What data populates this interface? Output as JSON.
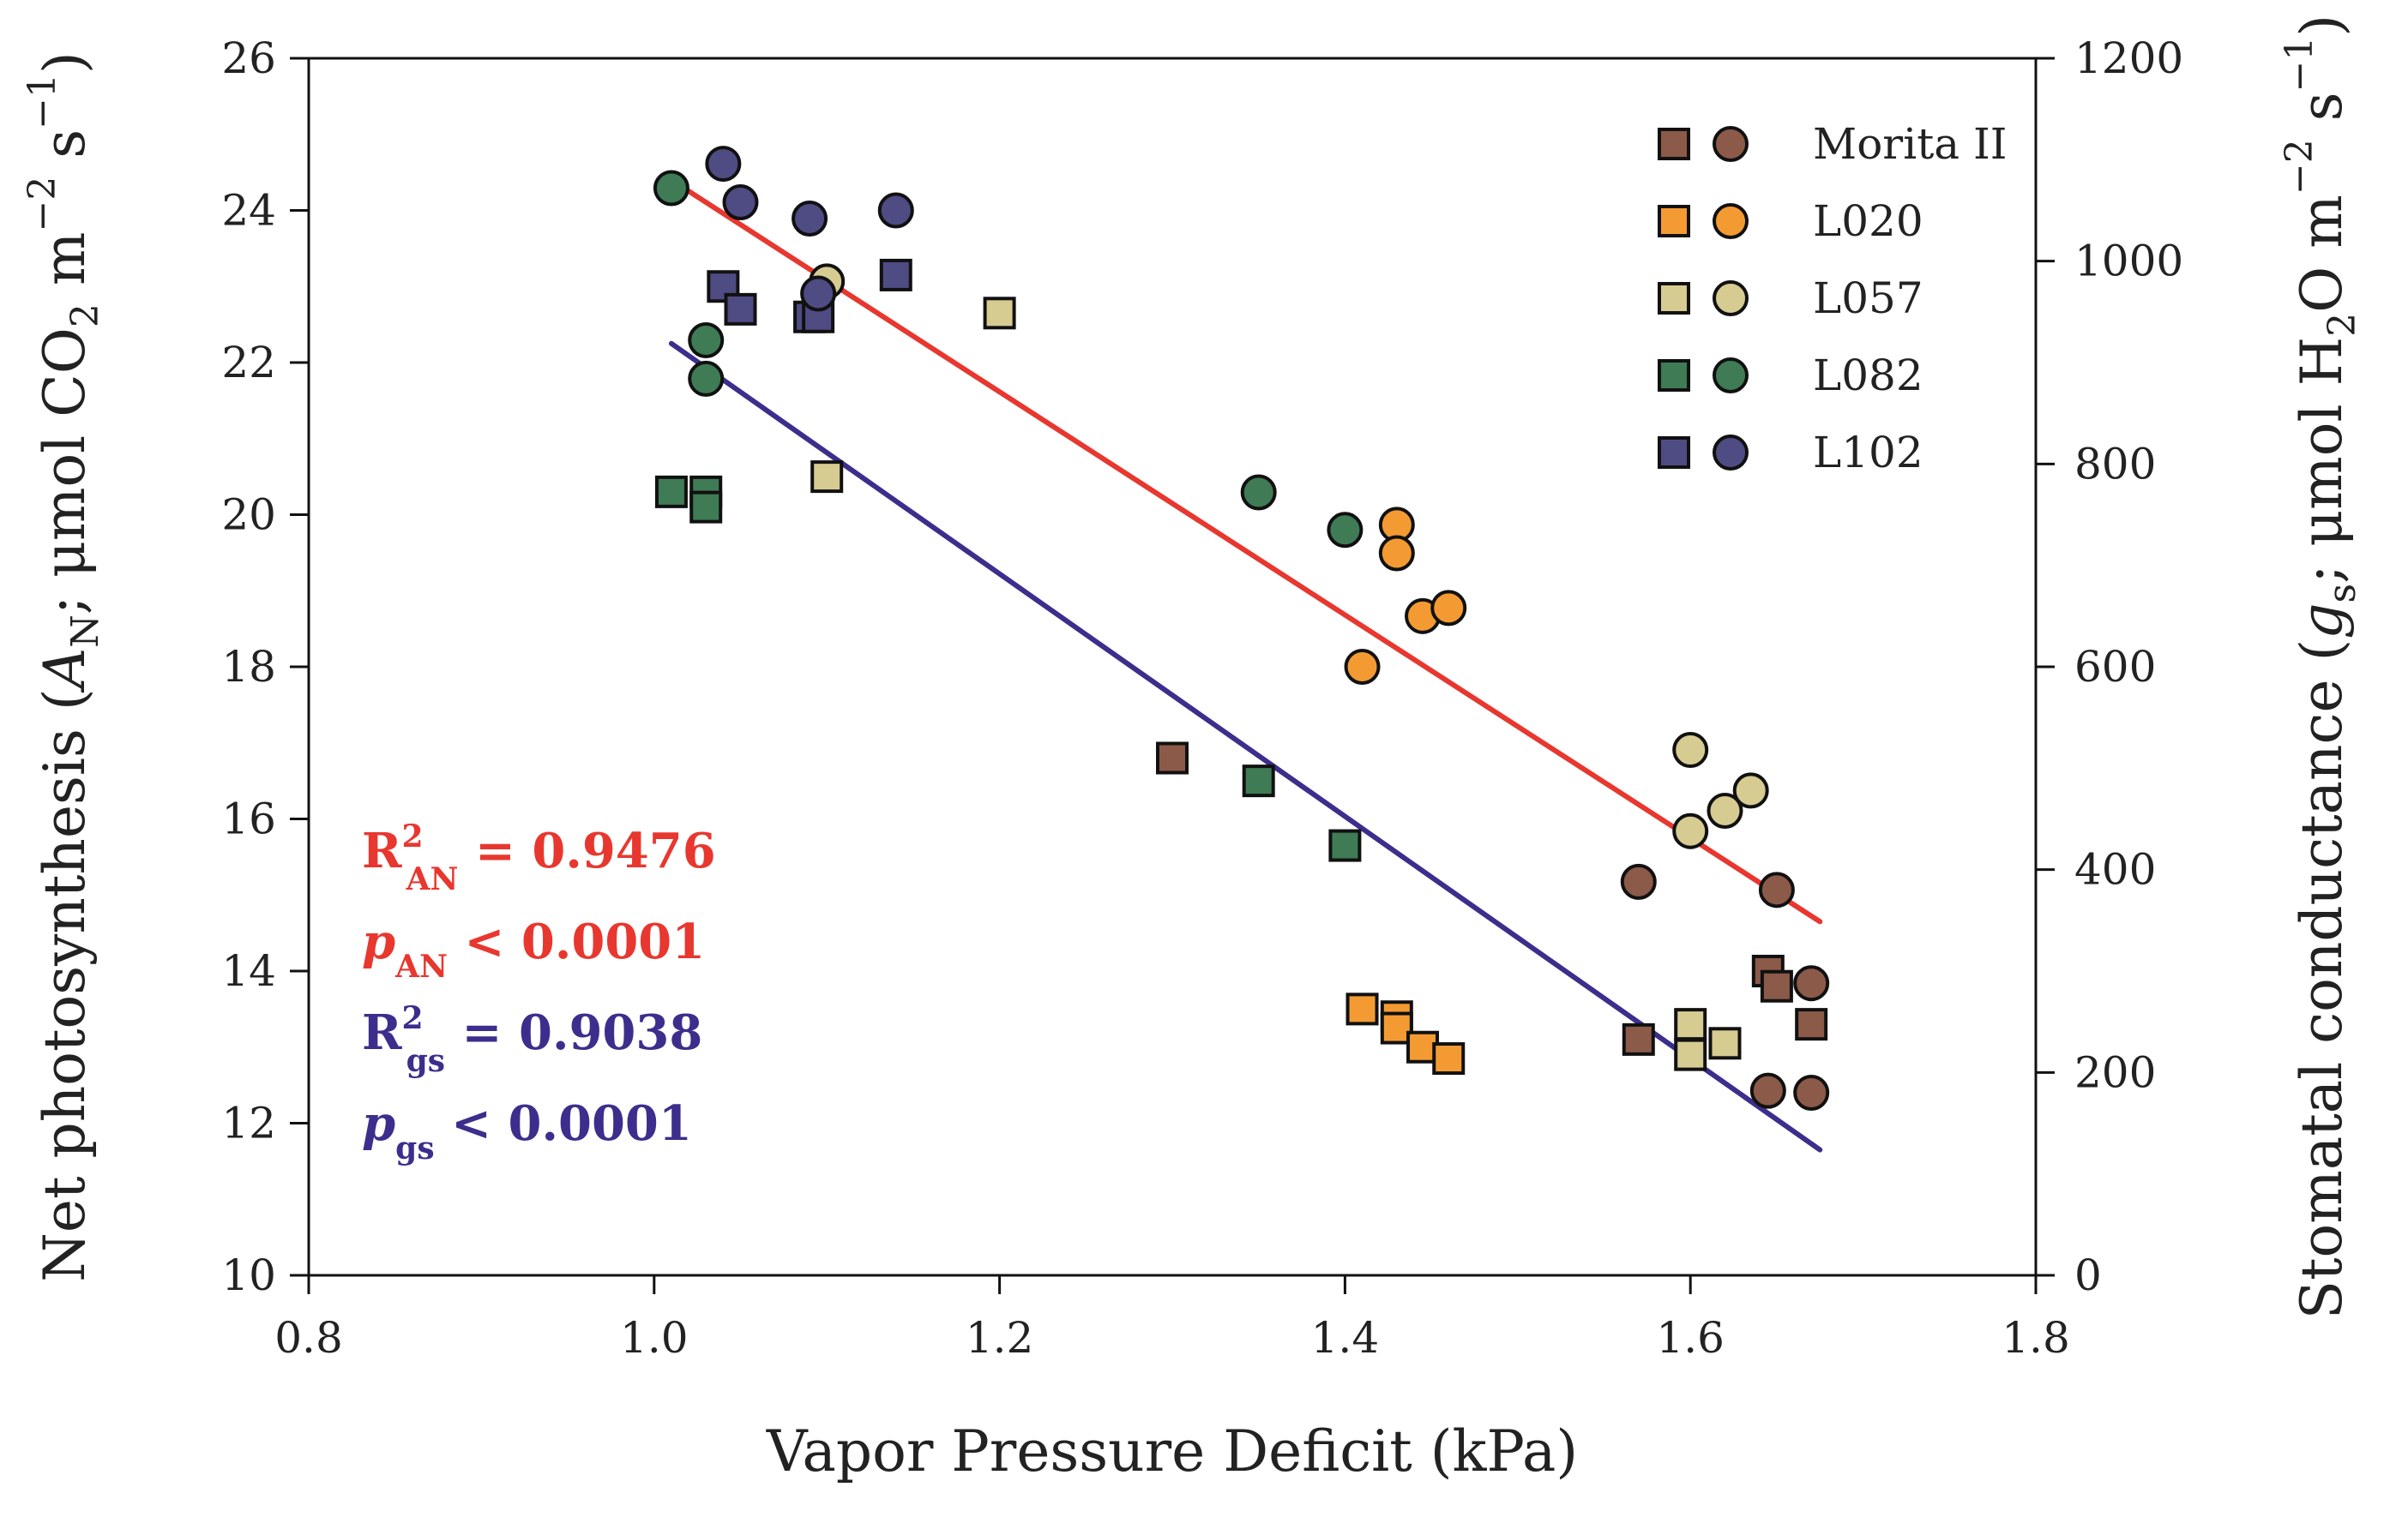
{
  "chart_data": {
    "type": "scatter",
    "xlabel": "Vapor Pressure Deficit (kPa)",
    "ylabel_left": {
      "pre": "Net photosynthesis (",
      "var": "A",
      "var_sub": "N",
      "unit_pre": "; μmol CO",
      "unit_sub": "2",
      "unit_mid": " m",
      "unit_sup1": "−2",
      "unit_s": " s",
      "unit_sup2": "−1",
      "post": ")"
    },
    "ylabel_right": {
      "pre": "Stomatal conductance (",
      "var": "g",
      "var_sub": "s",
      "unit_pre": "; μmol H",
      "unit_sub": "2",
      "unit_mid": "O m",
      "unit_sup1": "−2",
      "unit_s": " s",
      "unit_sup2": "−1",
      "post": ")"
    },
    "xlim": [
      0.8,
      1.8
    ],
    "ylim_left": [
      10,
      26
    ],
    "ylim_right": [
      0,
      1200
    ],
    "xticks": [
      "0.8",
      "1.0",
      "1.2",
      "1.4",
      "1.6",
      "1.8"
    ],
    "xtick_values": [
      0.8,
      1.0,
      1.2,
      1.4,
      1.6,
      1.8
    ],
    "yticks_left": [
      "10",
      "12",
      "14",
      "16",
      "18",
      "20",
      "22",
      "24",
      "26"
    ],
    "ytick_values_left": [
      10,
      12,
      14,
      16,
      18,
      20,
      22,
      24,
      26
    ],
    "yticks_right": [
      "0",
      "200",
      "400",
      "600",
      "800",
      "1000",
      "1200"
    ],
    "ytick_values_right": [
      0,
      200,
      400,
      600,
      800,
      1000,
      1200
    ],
    "legend": {
      "placement": "top-right",
      "note": "square = net photosynthesis (left axis), circle = stomatal conductance (right axis)"
    },
    "series": [
      {
        "name": "Morita II",
        "color": "#8B5A48",
        "an": [
          [
            1.3,
            16.8
          ],
          [
            1.57,
            13.1
          ],
          [
            1.645,
            14.0
          ],
          [
            1.65,
            13.8
          ],
          [
            1.67,
            13.3
          ]
        ],
        "gs": [
          [
            1.57,
            388
          ],
          [
            1.645,
            182
          ],
          [
            1.65,
            380
          ],
          [
            1.67,
            288
          ],
          [
            1.67,
            180
          ]
        ]
      },
      {
        "name": "L020",
        "color": "#F39B32",
        "an": [
          [
            1.41,
            13.5
          ],
          [
            1.43,
            13.4
          ],
          [
            1.43,
            13.25
          ],
          [
            1.445,
            13.0
          ],
          [
            1.46,
            12.85
          ]
        ],
        "gs": [
          [
            1.41,
            600
          ],
          [
            1.43,
            740
          ],
          [
            1.43,
            712
          ],
          [
            1.445,
            650
          ],
          [
            1.46,
            658
          ]
        ]
      },
      {
        "name": "L057",
        "color": "#D6CB91",
        "an": [
          [
            1.1,
            20.5
          ],
          [
            1.2,
            22.65
          ],
          [
            1.6,
            13.3
          ],
          [
            1.6,
            12.9
          ],
          [
            1.62,
            13.05
          ]
        ],
        "gs": [
          [
            1.1,
            980
          ],
          [
            1.6,
            518
          ],
          [
            1.6,
            438
          ],
          [
            1.62,
            458
          ],
          [
            1.635,
            478
          ]
        ]
      },
      {
        "name": "L082",
        "color": "#3F7B55",
        "an": [
          [
            1.01,
            20.3
          ],
          [
            1.03,
            20.3
          ],
          [
            1.03,
            20.1
          ],
          [
            1.35,
            16.5
          ],
          [
            1.4,
            15.65
          ]
        ],
        "gs": [
          [
            1.01,
            1072
          ],
          [
            1.03,
            922
          ],
          [
            1.03,
            884
          ],
          [
            1.35,
            772
          ],
          [
            1.4,
            735
          ]
        ]
      },
      {
        "name": "L102",
        "color": "#4F4B83",
        "an": [
          [
            1.04,
            23.0
          ],
          [
            1.05,
            22.7
          ],
          [
            1.09,
            22.6
          ],
          [
            1.095,
            22.6
          ],
          [
            1.14,
            23.15
          ]
        ],
        "gs": [
          [
            1.04,
            1096
          ],
          [
            1.05,
            1058
          ],
          [
            1.09,
            1042
          ],
          [
            1.095,
            968
          ],
          [
            1.14,
            1050
          ]
        ]
      }
    ],
    "fits": [
      {
        "name": "AN fit",
        "color": "#E8372F",
        "axis": "left",
        "x": [
          1.01,
          1.675
        ],
        "y": [
          24.4,
          14.65
        ]
      },
      {
        "name": "gs fit",
        "color": "#3C2E8C",
        "axis": "left",
        "x": [
          1.01,
          1.675
        ],
        "y": [
          22.25,
          11.65
        ]
      }
    ],
    "annotations": [
      {
        "color": "#E8372F",
        "italic": false,
        "main": "R",
        "sup": "2",
        "sub": "AN",
        "rest": " = 0.9476"
      },
      {
        "color": "#E8372F",
        "italic": true,
        "main": "p",
        "sup": "",
        "sub": "AN",
        "rest": " < 0.0001"
      },
      {
        "color": "#3C2E8C",
        "italic": false,
        "main": "R",
        "sup": "2",
        "sub": "gs",
        "rest": " = 0.9038"
      },
      {
        "color": "#3C2E8C",
        "italic": true,
        "main": "p",
        "sup": "",
        "sub": "gs",
        "rest": " < 0.0001"
      }
    ]
  }
}
